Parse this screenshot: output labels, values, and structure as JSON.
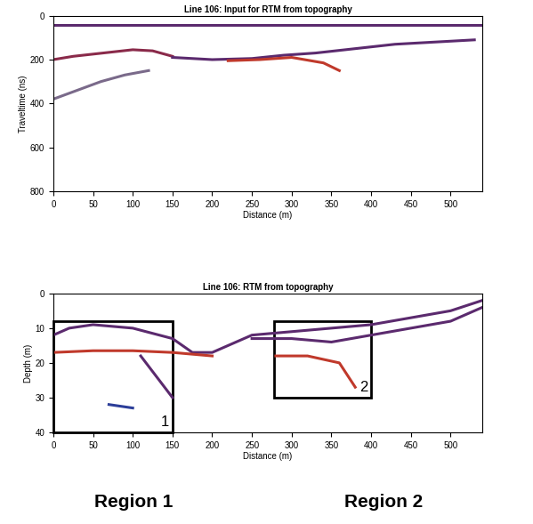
{
  "chart_data": [
    {
      "type": "section",
      "title": "Line 106: Input for RTM from topography",
      "x_label": "Distance (m)",
      "y_label": "Traveltime (ns)",
      "xlim": [
        0,
        540
      ],
      "ylim": [
        800,
        0
      ],
      "xticks": [
        0,
        50,
        100,
        150,
        200,
        250,
        300,
        350,
        400,
        450,
        500
      ],
      "yticks": [
        0,
        200,
        400,
        600,
        800
      ],
      "reflectors": [
        {
          "color": "#5b2a6e",
          "x": [
            0,
            540
          ],
          "values": [
            40,
            40
          ]
        },
        {
          "color": "#8a2a4a",
          "x": [
            0,
            25,
            50,
            75,
            100,
            125,
            150
          ],
          "values": [
            200,
            185,
            175,
            165,
            155,
            160,
            185
          ]
        },
        {
          "color": "#5b2a6e",
          "x": [
            150,
            200,
            250,
            290,
            330,
            380,
            430,
            480,
            530
          ],
          "values": [
            190,
            200,
            195,
            180,
            170,
            150,
            130,
            120,
            110
          ]
        },
        {
          "color": "#c0392b",
          "x": [
            220,
            260,
            300,
            340,
            360
          ],
          "values": [
            205,
            200,
            190,
            215,
            250
          ]
        },
        {
          "color": "#7a6a8a",
          "x": [
            0,
            30,
            60,
            90,
            120
          ],
          "values": [
            380,
            340,
            300,
            270,
            250
          ]
        }
      ]
    },
    {
      "type": "section",
      "title": "Line 106: RTM from topography",
      "x_label": "Distance (m)",
      "y_label": "Depth (m)",
      "xlim": [
        0,
        540
      ],
      "ylim": [
        40,
        0
      ],
      "xticks": [
        0,
        50,
        100,
        150,
        200,
        250,
        300,
        350,
        400,
        450,
        500
      ],
      "yticks": [
        0,
        10,
        20,
        30,
        40
      ],
      "reflectors": [
        {
          "color": "#5b2a6e",
          "x": [
            0,
            20,
            50,
            100,
            150,
            175,
            200,
            250,
            300,
            350,
            400,
            450,
            500,
            540
          ],
          "values": [
            12,
            10,
            9,
            10,
            13,
            17,
            17,
            12,
            11,
            10,
            9,
            7,
            5,
            2
          ]
        },
        {
          "color": "#c0392b",
          "x": [
            0,
            50,
            100,
            150,
            200
          ],
          "values": [
            17,
            16.5,
            16.5,
            17,
            18
          ]
        },
        {
          "color": "#5b2a6e",
          "x": [
            110,
            130,
            150
          ],
          "values": [
            18,
            24,
            30
          ]
        },
        {
          "color": "#c0392b",
          "x": [
            280,
            320,
            360,
            380
          ],
          "values": [
            18,
            18,
            20,
            27
          ]
        },
        {
          "color": "#5b2a6e",
          "x": [
            250,
            300,
            350,
            400,
            450,
            500,
            540
          ],
          "values": [
            13,
            13,
            14,
            12,
            10,
            8,
            4
          ]
        },
        {
          "color": "#2c3e99",
          "x": [
            70,
            85,
            100
          ],
          "values": [
            32,
            32.5,
            33
          ]
        }
      ],
      "boxes": [
        {
          "label": "1",
          "x": [
            0,
            150
          ],
          "y": [
            8,
            40
          ]
        },
        {
          "label": "2",
          "x": [
            278,
            400
          ],
          "y": [
            8,
            30
          ]
        }
      ],
      "annotations": [
        "Region 1",
        "Region 2"
      ]
    }
  ]
}
